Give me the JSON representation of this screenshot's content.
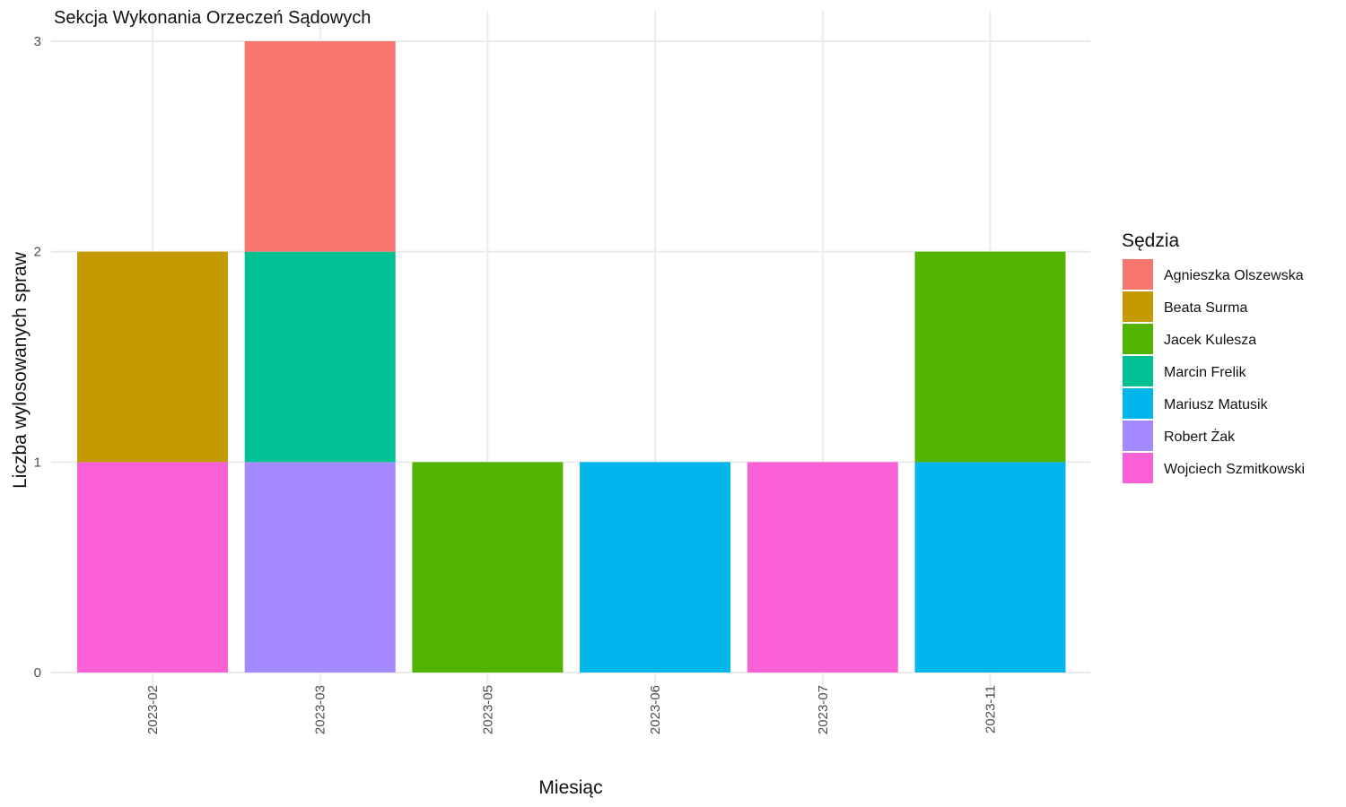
{
  "chart_data": {
    "type": "bar",
    "stacked": true,
    "title": "Sekcja Wykonania Orzeczeń Sądowych",
    "xlabel": "Miesiąc",
    "ylabel": "Liczba wylosowanych spraw",
    "ylim": [
      0,
      3
    ],
    "yticks": [
      "0",
      "1",
      "2",
      "3"
    ],
    "grid": true,
    "legend_title": "Sędzia",
    "legend_position": "right",
    "categories": [
      "2023-02",
      "2023-03",
      "2023-05",
      "2023-06",
      "2023-07",
      "2023-11"
    ],
    "series": [
      {
        "name": "Agnieszka Olszewska",
        "color": "#F8766D",
        "values": [
          0,
          1,
          0,
          0,
          0,
          0
        ]
      },
      {
        "name": "Beata Surma",
        "color": "#C49A00",
        "values": [
          1,
          0,
          0,
          0,
          0,
          0
        ]
      },
      {
        "name": "Jacek Kulesza",
        "color": "#53B400",
        "values": [
          0,
          0,
          1,
          0,
          0,
          1
        ]
      },
      {
        "name": "Marcin Frelik",
        "color": "#00C094",
        "values": [
          0,
          1,
          0,
          0,
          0,
          0
        ]
      },
      {
        "name": "Mariusz Matusik",
        "color": "#00B6EB",
        "values": [
          0,
          0,
          0,
          1,
          0,
          1
        ]
      },
      {
        "name": "Robert Żak",
        "color": "#A58AFF",
        "values": [
          0,
          1,
          0,
          0,
          0,
          0
        ]
      },
      {
        "name": "Wojciech Szmitkowski",
        "color": "#FB61D7",
        "values": [
          1,
          0,
          0,
          0,
          1,
          0
        ]
      }
    ]
  }
}
